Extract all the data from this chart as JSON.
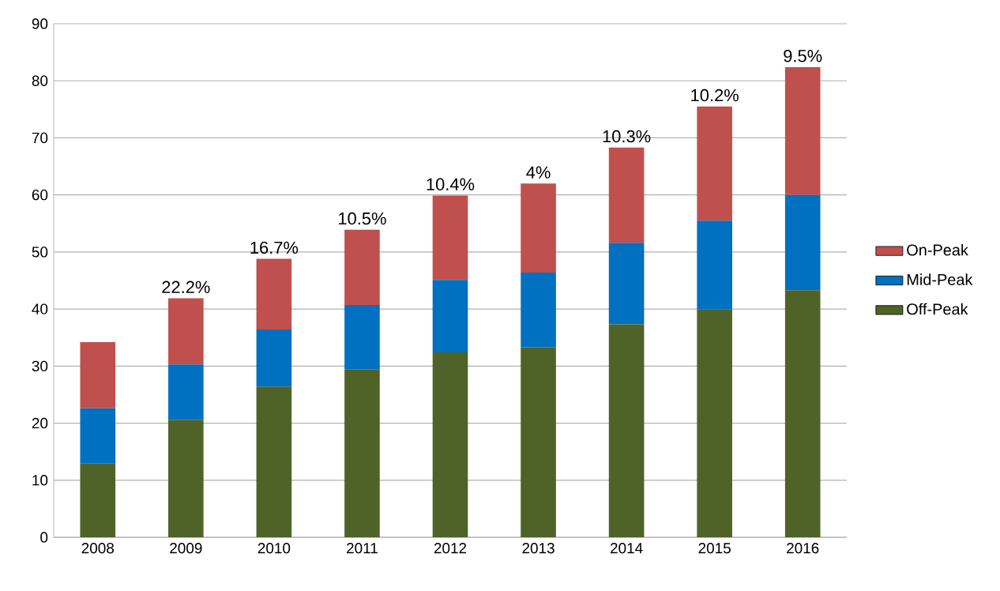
{
  "chart_data": {
    "type": "bar",
    "stacked": true,
    "categories": [
      "2008",
      "2009",
      "2010",
      "2011",
      "2012",
      "2013",
      "2014",
      "2015",
      "2016"
    ],
    "series": [
      {
        "name": "Off-Peak",
        "color": "#4f6228",
        "values": [
          12.9,
          20.6,
          26.4,
          29.4,
          32.4,
          33.3,
          37.3,
          39.9,
          43.3
        ]
      },
      {
        "name": "Mid-Peak",
        "color": "#0070c0",
        "values": [
          9.7,
          9.7,
          10.0,
          11.3,
          12.7,
          13.1,
          14.3,
          15.6,
          16.7
        ]
      },
      {
        "name": "On-Peak",
        "color": "#c0504d",
        "values": [
          11.6,
          11.6,
          12.4,
          13.2,
          14.8,
          15.6,
          16.7,
          20.0,
          22.4
        ]
      }
    ],
    "ylim": [
      0,
      90
    ],
    "yticks": [
      0,
      10,
      20,
      30,
      40,
      50,
      60,
      70,
      80,
      90
    ],
    "grid": "y",
    "legend": "right",
    "annotations": [
      {
        "text": "22.2%",
        "x": "2009",
        "y": 41.9
      },
      {
        "text": "16.7%",
        "x": "2010",
        "y": 48.8
      },
      {
        "text": "10.5%",
        "x": "2011",
        "y": 53.9
      },
      {
        "text": "10.4%",
        "x": "2012",
        "y": 59.9
      },
      {
        "text": "4%",
        "x": "2013",
        "y": 62.0
      },
      {
        "text": "10.3%",
        "x": "2014",
        "y": 68.3
      },
      {
        "text": "10.2%",
        "x": "2015",
        "y": 75.5
      },
      {
        "text": "9.5%",
        "x": "2016",
        "y": 82.4
      }
    ]
  }
}
